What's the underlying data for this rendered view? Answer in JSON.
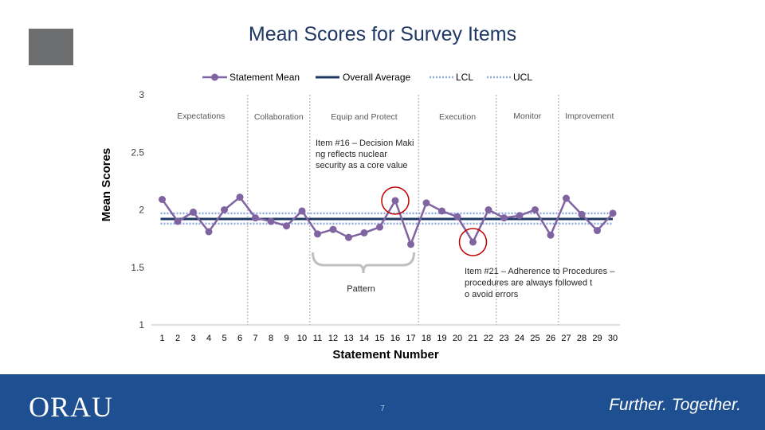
{
  "slide": {
    "title": "Mean Scores for Survey Items",
    "page_number": "7"
  },
  "footer": {
    "logo_text": "ORAU",
    "tagline": "Further. Together."
  },
  "colors": {
    "statement_mean": "#8064a2",
    "overall": "#1f3864",
    "limits": "#8ea9db",
    "footer": "#1d4f91",
    "highlight": "#c00000"
  },
  "chart_data": {
    "type": "line",
    "title": "",
    "xlabel": "Statement Number",
    "ylabel": "Mean Scores",
    "ylim": [
      1,
      3
    ],
    "yticks": [
      "1",
      "1.5",
      "2",
      "2.5",
      "3"
    ],
    "x": [
      1,
      2,
      3,
      4,
      5,
      6,
      7,
      8,
      9,
      10,
      11,
      12,
      13,
      14,
      15,
      16,
      17,
      18,
      19,
      20,
      21,
      22,
      23,
      24,
      25,
      26,
      27,
      28,
      29,
      30
    ],
    "series": [
      {
        "name": "Statement Mean",
        "values": [
          2.09,
          1.9,
          1.98,
          1.81,
          2.0,
          2.11,
          1.93,
          1.9,
          1.86,
          1.99,
          1.79,
          1.83,
          1.76,
          1.8,
          1.85,
          2.08,
          1.7,
          2.06,
          1.99,
          1.94,
          1.72,
          2.0,
          1.93,
          1.95,
          2.0,
          1.78,
          2.1,
          1.96,
          1.82,
          1.97
        ]
      },
      {
        "name": "Overall Average",
        "values": [
          1.92,
          1.92,
          1.92,
          1.92,
          1.92,
          1.92,
          1.92,
          1.92,
          1.92,
          1.92,
          1.92,
          1.92,
          1.92,
          1.92,
          1.92,
          1.92,
          1.92,
          1.92,
          1.92,
          1.92,
          1.92,
          1.92,
          1.92,
          1.92,
          1.92,
          1.92,
          1.92,
          1.92,
          1.92,
          1.92
        ]
      },
      {
        "name": "LCL",
        "values": [
          1.88,
          1.88,
          1.88,
          1.88,
          1.88,
          1.88,
          1.88,
          1.88,
          1.88,
          1.88,
          1.88,
          1.88,
          1.88,
          1.88,
          1.88,
          1.88,
          1.88,
          1.88,
          1.88,
          1.88,
          1.88,
          1.88,
          1.88,
          1.88,
          1.88,
          1.88,
          1.88,
          1.88,
          1.88,
          1.88
        ]
      },
      {
        "name": "UCL",
        "values": [
          1.97,
          1.97,
          1.97,
          1.97,
          1.97,
          1.97,
          1.97,
          1.97,
          1.97,
          1.97,
          1.97,
          1.97,
          1.97,
          1.97,
          1.97,
          1.97,
          1.97,
          1.97,
          1.97,
          1.97,
          1.97,
          1.97,
          1.97,
          1.97,
          1.97,
          1.97,
          1.97,
          1.97,
          1.97,
          1.97
        ]
      }
    ],
    "legend": {
      "placement": "top",
      "entries": [
        "Statement Mean",
        "Overall Average",
        "LCL",
        "UCL"
      ]
    },
    "grid": false,
    "sections": [
      {
        "label": "Expectations",
        "start": 1,
        "end": 6
      },
      {
        "label": "Collaboration",
        "start": 7,
        "end": 10
      },
      {
        "label": "Equip and Protect",
        "start": 11,
        "end": 17
      },
      {
        "label": "Execution",
        "start": 18,
        "end": 22
      },
      {
        "label": "Monitor",
        "start": 23,
        "end": 26
      },
      {
        "label": "Improvement",
        "start": 27,
        "end": 30
      }
    ],
    "annotations": {
      "item16": "Item #16 – Decision Making reflects nuclear security as a core value",
      "item21": "Item #21 – Adherence to Procedures – procedures are always followed to avoid errors",
      "pattern": "Pattern"
    },
    "highlighted_points": [
      16,
      21
    ],
    "pattern_range": [
      11,
      17
    ]
  }
}
